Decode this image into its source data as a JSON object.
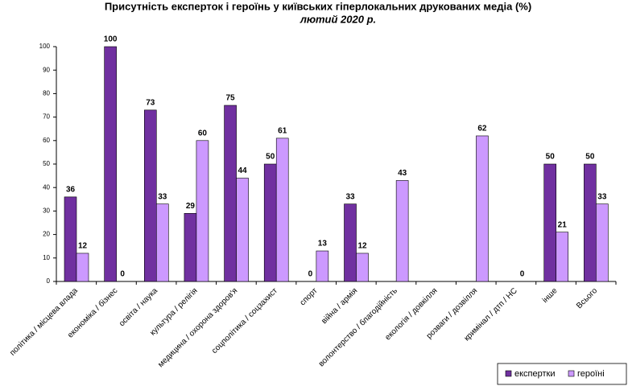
{
  "chart_data": {
    "type": "bar",
    "title": "Присутність експерток і героїнь у київських гіперлокальних друкованих медіа (%)",
    "subtitle": "лютий 2020 р.",
    "categories": [
      "політика / місцева влада",
      "економіка / бізнес",
      "освіта / наука",
      "культура / релігія",
      "медицина / охорона здоров'я",
      "соцполітика / соцзахист",
      "спорт",
      "війна / армія",
      "волонтерство / благодійність",
      "екологія / довкілля",
      "розваги / дозвілля",
      "кримінал / дтп / НС",
      "інше",
      "Всього"
    ],
    "series": [
      {
        "name": "експертки",
        "color": "#7030a0",
        "values": [
          36,
          100,
          73,
          29,
          75,
          50,
          0,
          33,
          null,
          null,
          null,
          null,
          50,
          50
        ]
      },
      {
        "name": "героїні",
        "color": "#cc99ff",
        "values": [
          12,
          0,
          33,
          60,
          44,
          61,
          13,
          12,
          43,
          null,
          62,
          0,
          21,
          33
        ]
      }
    ],
    "ylim": [
      0,
      100
    ],
    "yticks": [
      0,
      10,
      20,
      30,
      40,
      50,
      60,
      70,
      80,
      90,
      100
    ],
    "grid": false,
    "legend": "bottom-right"
  }
}
